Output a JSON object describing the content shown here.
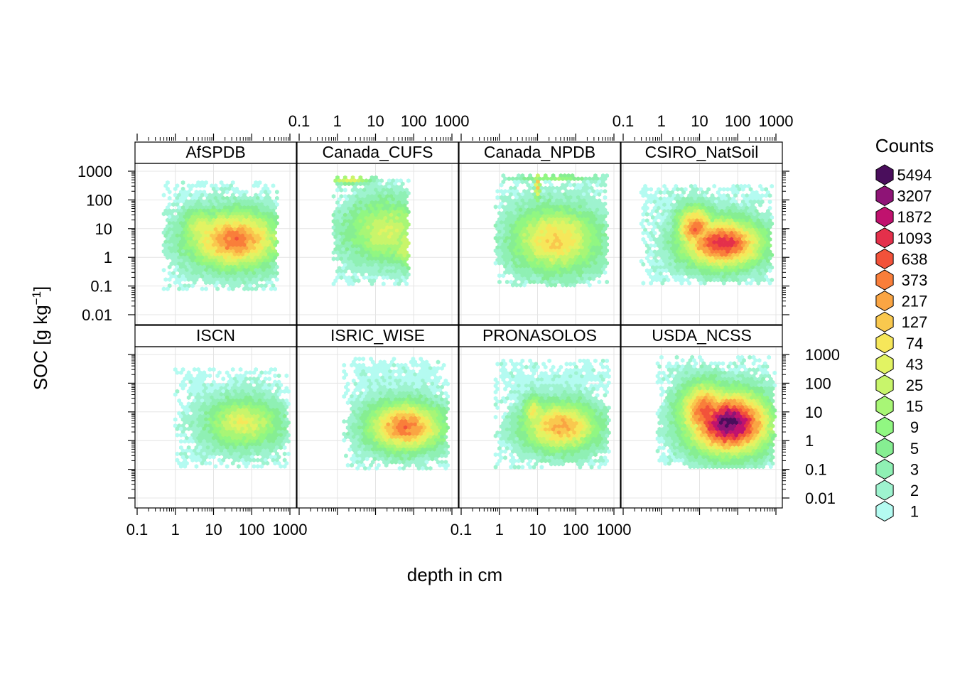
{
  "chart_data": {
    "type": "hexbin",
    "xlabel": "depth in cm",
    "ylabel": "SOC [g kg⁻¹]",
    "ylabel_parts": {
      "main": "SOC [g kg",
      "sup": "−1",
      "end": "]"
    },
    "x_scale": "log10",
    "y_scale": "log10",
    "xlim": [
      0.1,
      1000
    ],
    "ylim": [
      0.01,
      1000
    ],
    "x_ticks": [
      0.1,
      1,
      10,
      100,
      1000
    ],
    "x_tick_labels": [
      "0.1",
      "1",
      "10",
      "100",
      "1000"
    ],
    "y_ticks": [
      0.01,
      0.1,
      1,
      10,
      100,
      1000
    ],
    "y_tick_labels": [
      "0.01",
      "0.1",
      "1",
      "10",
      "100",
      "1000"
    ],
    "grid": true,
    "legend": {
      "title": "Counts",
      "position": "right",
      "levels": [
        "5494",
        "3207",
        "1872",
        "1093",
        "638",
        "373",
        "217",
        "127",
        "74",
        "43",
        "25",
        "15",
        "9",
        "5",
        "3",
        "2",
        "1"
      ],
      "colors": [
        "#4a0e5c",
        "#8e1476",
        "#c0126e",
        "#e4304b",
        "#f2523a",
        "#f97e3a",
        "#faa543",
        "#f9c84e",
        "#f6e75a",
        "#e2f363",
        "#c8f56b",
        "#a8f676",
        "#91f782",
        "#86ee92",
        "#8ff0b4",
        "#9ef3cf",
        "#b4fbf1"
      ]
    },
    "panels": [
      {
        "name": "AfSPDB",
        "clusters": [
          {
            "depth": 35,
            "soc": 4,
            "intensity": 0.7,
            "spread_x": 0.85,
            "spread_y": 0.7
          },
          {
            "depth": 5,
            "soc": 10,
            "intensity": 0.45,
            "spread_x": 0.4,
            "spread_y": 0.5
          }
        ],
        "x_range": [
          0.5,
          500
        ],
        "y_range": [
          0.07,
          400
        ]
      },
      {
        "name": "Canada_CUFS",
        "clusters": [
          {
            "depth": 20,
            "soc": 8,
            "intensity": 0.4,
            "spread_x": 0.8,
            "spread_y": 0.8
          },
          {
            "depth": 60,
            "soc": 2,
            "intensity": 0.4,
            "spread_x": 0.3,
            "spread_y": 0.5
          },
          {
            "depth": 2,
            "soc": 500,
            "intensity": 0.45,
            "spread_x": 0.45,
            "spread_y": 0.1
          }
        ],
        "x_range": [
          0.8,
          80
        ],
        "y_range": [
          0.1,
          600
        ]
      },
      {
        "name": "Canada_NPDB",
        "clusters": [
          {
            "depth": 30,
            "soc": 4,
            "intensity": 0.55,
            "spread_x": 0.8,
            "spread_y": 0.8
          },
          {
            "depth": 10,
            "soc": 300,
            "intensity": 0.65,
            "spread_x": 0.05,
            "spread_y": 0.35
          },
          {
            "depth": 30,
            "soc": 600,
            "intensity": 0.3,
            "spread_x": 0.8,
            "spread_y": 0.08
          }
        ],
        "x_range": [
          0.8,
          700
        ],
        "y_range": [
          0.1,
          700
        ]
      },
      {
        "name": "CSIRO_NatSoil",
        "clusters": [
          {
            "depth": 40,
            "soc": 3,
            "intensity": 0.82,
            "spread_x": 0.75,
            "spread_y": 0.6
          },
          {
            "depth": 8,
            "soc": 10,
            "intensity": 0.72,
            "spread_x": 0.35,
            "spread_y": 0.55
          }
        ],
        "x_range": [
          0.3,
          800
        ],
        "y_range": [
          0.1,
          300
        ]
      },
      {
        "name": "ISCN",
        "clusters": [
          {
            "depth": 60,
            "soc": 4,
            "intensity": 0.45,
            "spread_x": 0.7,
            "spread_y": 0.6
          }
        ],
        "x_range": [
          1,
          1000
        ],
        "y_range": [
          0.1,
          300
        ]
      },
      {
        "name": "ISRIC_WISE",
        "clusters": [
          {
            "depth": 60,
            "soc": 3,
            "intensity": 0.7,
            "spread_x": 0.7,
            "spread_y": 0.6
          }
        ],
        "x_range": [
          1.5,
          800
        ],
        "y_range": [
          0.1,
          700
        ]
      },
      {
        "name": "PRONASOLOS",
        "clusters": [
          {
            "depth": 40,
            "soc": 3,
            "intensity": 0.62,
            "spread_x": 0.7,
            "spread_y": 0.6
          },
          {
            "depth": 8,
            "soc": 10,
            "intensity": 0.5,
            "spread_x": 0.2,
            "spread_y": 0.4
          }
        ],
        "x_range": [
          0.8,
          800
        ],
        "y_range": [
          0.1,
          600
        ]
      },
      {
        "name": "USDA_NCSS",
        "clusters": [
          {
            "depth": 60,
            "soc": 4,
            "intensity": 0.99,
            "spread_x": 0.75,
            "spread_y": 0.75
          },
          {
            "depth": 15,
            "soc": 10,
            "intensity": 0.75,
            "spread_x": 0.5,
            "spread_y": 0.7
          }
        ],
        "x_range": [
          0.8,
          1000
        ],
        "y_range": [
          0.1,
          800
        ]
      }
    ]
  }
}
